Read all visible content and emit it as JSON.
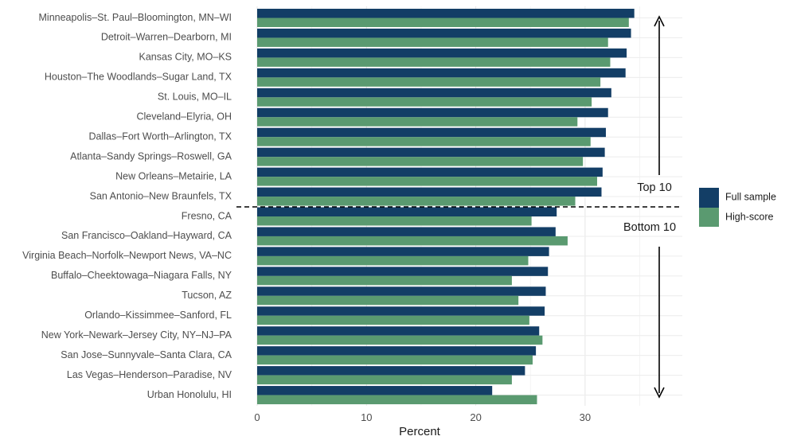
{
  "chart_data": {
    "type": "bar",
    "orientation": "horizontal",
    "xlabel": "Percent",
    "xlim": [
      0,
      38
    ],
    "xticks": [
      0,
      10,
      20,
      30
    ],
    "grid": true,
    "legend_position": "right",
    "categories": [
      "Minneapolis–St. Paul–Bloomington, MN–WI",
      "Detroit–Warren–Dearborn, MI",
      "Kansas City, MO–KS",
      "Houston–The Woodlands–Sugar Land, TX",
      "St. Louis, MO–IL",
      "Cleveland–Elyria, OH",
      "Dallas–Fort Worth–Arlington, TX",
      "Atlanta–Sandy Springs–Roswell, GA",
      "New Orleans–Metairie, LA",
      "San Antonio–New Braunfels, TX",
      "Fresno, CA",
      "San Francisco–Oakland–Hayward, CA",
      "Virginia Beach–Norfolk–Newport News, VA–NC",
      "Buffalo–Cheektowaga–Niagara Falls, NY",
      "Tucson, AZ",
      "Orlando–Kissimmee–Sanford, FL",
      "New York–Newark–Jersey City, NY–NJ–PA",
      "San Jose–Sunnyvale–Santa Clara, CA",
      "Las Vegas–Henderson–Paradise, NV",
      "Urban Honolulu, HI"
    ],
    "series": [
      {
        "name": "Full sample",
        "color": "#133e66",
        "values": [
          34.5,
          34.2,
          33.8,
          33.7,
          32.4,
          32.1,
          31.9,
          31.8,
          31.6,
          31.5,
          27.4,
          27.3,
          26.7,
          26.6,
          26.4,
          26.3,
          25.8,
          25.5,
          24.5,
          21.5
        ]
      },
      {
        "name": "High-score",
        "color": "#5a9a70",
        "values": [
          34.0,
          32.1,
          32.3,
          31.4,
          30.6,
          29.3,
          30.5,
          29.8,
          31.1,
          29.1,
          25.1,
          28.4,
          24.8,
          23.3,
          23.9,
          24.9,
          26.1,
          25.2,
          23.3,
          25.6
        ]
      }
    ],
    "groups": [
      {
        "label": "Top 10",
        "range": [
          0,
          9
        ]
      },
      {
        "label": "Bottom 10",
        "range": [
          10,
          19
        ]
      }
    ]
  }
}
